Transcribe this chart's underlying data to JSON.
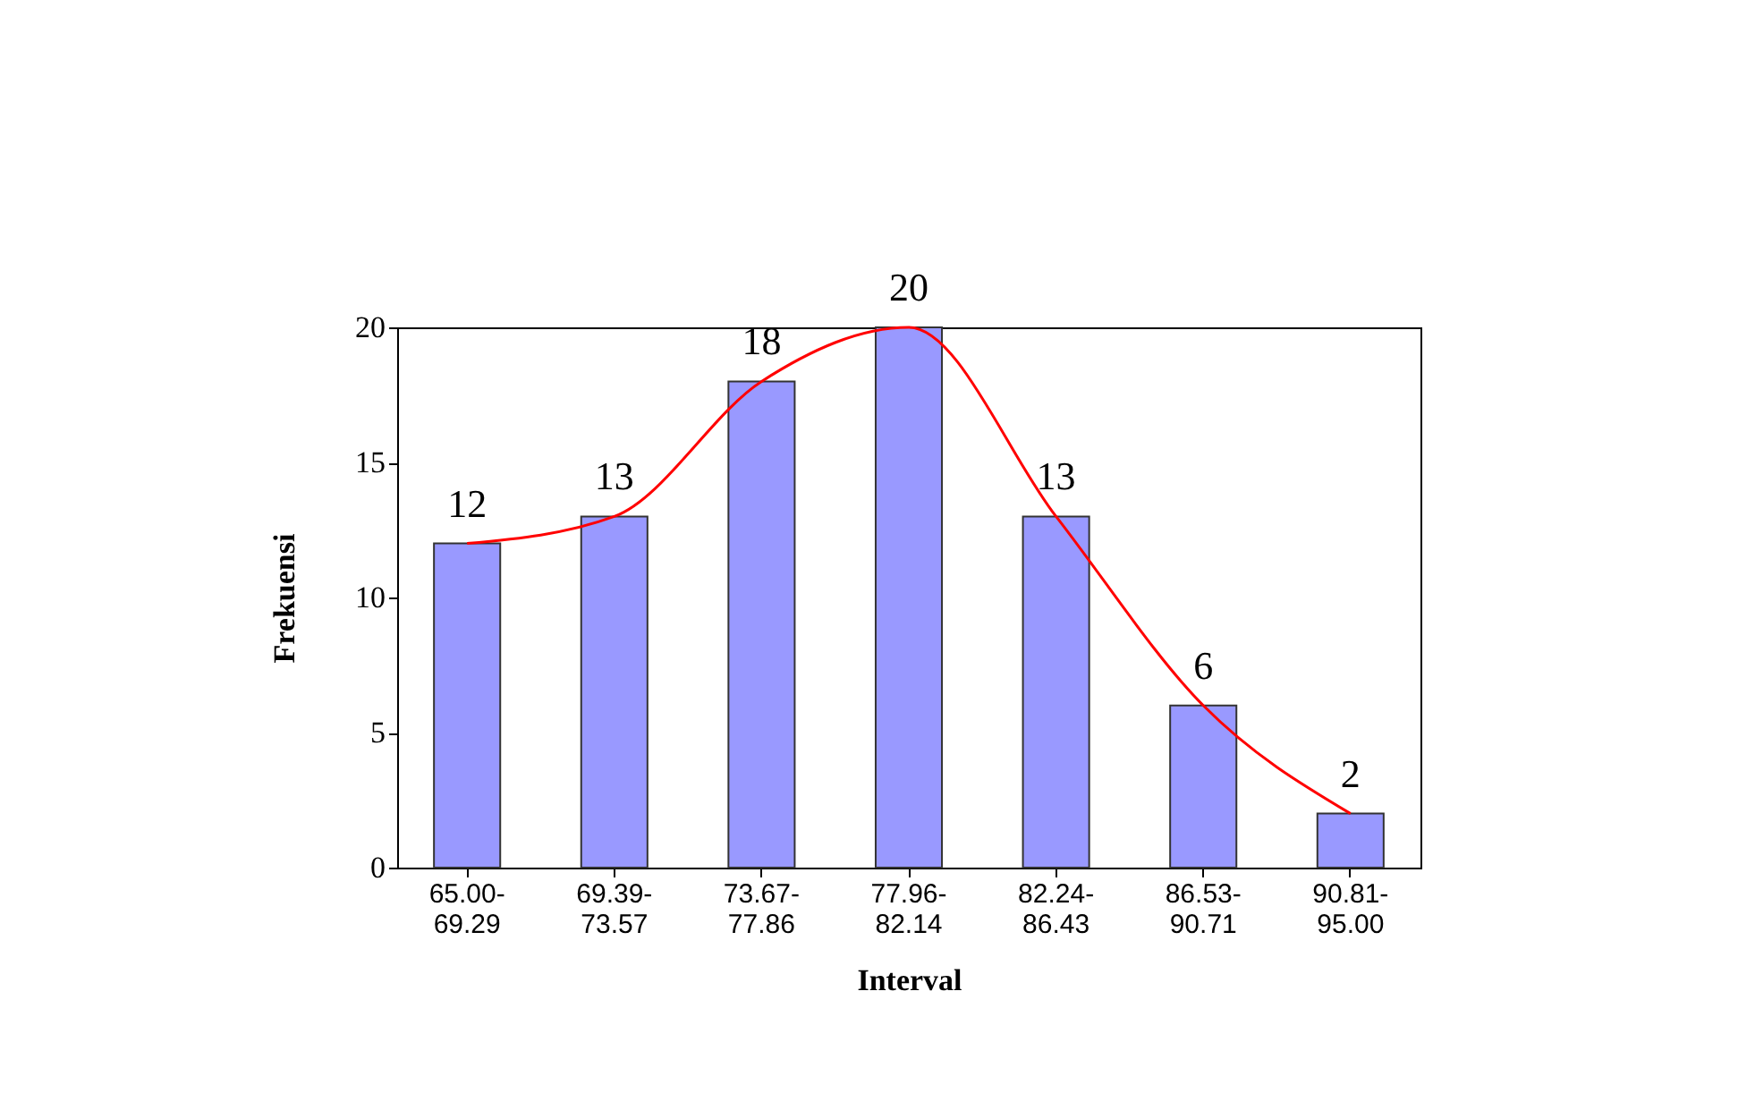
{
  "chart_data": {
    "type": "bar",
    "xlabel": "Interval",
    "ylabel": "Frekuensi",
    "categories": [
      "65.00-69.29",
      "69.39-73.57",
      "73.67-77.86",
      "77.96-82.14",
      "82.24-86.43",
      "86.53-90.71",
      "90.81-95.00"
    ],
    "series": [
      {
        "color": "#9999ff",
        "values": [
          12,
          13,
          18,
          20,
          13,
          6,
          2
        ],
        "value_labels": [
          "12",
          "13",
          "18",
          "20",
          "13",
          "6",
          "2"
        ]
      },
      {
        "type": "line",
        "color": "#ff0000",
        "values": [
          12,
          13,
          18,
          20,
          13,
          6,
          2
        ]
      }
    ],
    "ylim": [
      0,
      20
    ],
    "yticks": [
      0,
      5,
      10,
      15,
      20
    ],
    "grid": false
  }
}
